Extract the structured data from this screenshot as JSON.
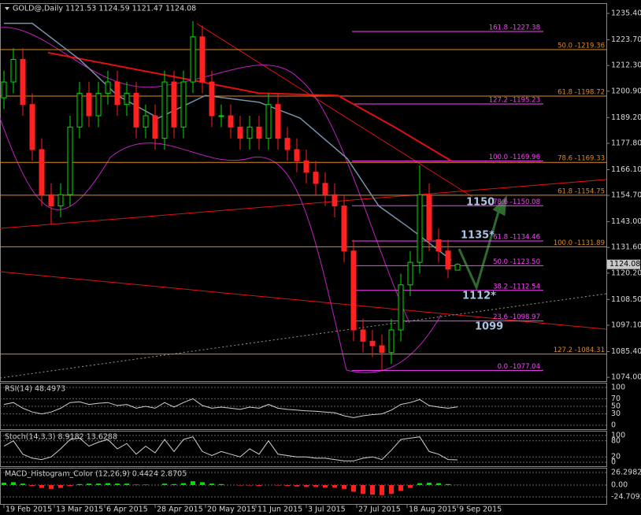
{
  "chart_data": {
    "type": "candlestick",
    "title": "GOLD@,Daily  1121.53 1124.59 1121.47 1124.08",
    "x": [
      0,
      3,
      6,
      9,
      12,
      15,
      18,
      21,
      24,
      27,
      30,
      33,
      36,
      39,
      42,
      45,
      48,
      51,
      54,
      57,
      60,
      63,
      66,
      69,
      72,
      75,
      78,
      81,
      84,
      87,
      90,
      93,
      96,
      99,
      102,
      105,
      108,
      111,
      114,
      117,
      120,
      123,
      126,
      129,
      132,
      135,
      138,
      141,
      144
    ],
    "open": [
      1198,
      1205,
      1215,
      1195,
      1175,
      1155,
      1150,
      1155,
      1185,
      1200,
      1190,
      1200,
      1205,
      1195,
      1200,
      1185,
      1190,
      1180,
      1205,
      1185,
      1205,
      1225,
      1205,
      1190,
      1190,
      1185,
      1180,
      1185,
      1180,
      1195,
      1180,
      1175,
      1170,
      1165,
      1160,
      1155,
      1150,
      1130,
      1095,
      1090,
      1088,
      1085,
      1095,
      1115,
      1125,
      1155,
      1135,
      1130,
      1121.53
    ],
    "high": [
      1210,
      1220,
      1220,
      1200,
      1180,
      1160,
      1160,
      1190,
      1205,
      1205,
      1205,
      1210,
      1210,
      1205,
      1205,
      1195,
      1195,
      1210,
      1210,
      1210,
      1232,
      1230,
      1210,
      1195,
      1195,
      1190,
      1190,
      1190,
      1200,
      1200,
      1185,
      1180,
      1175,
      1170,
      1165,
      1160,
      1155,
      1135,
      1100,
      1095,
      1093,
      1100,
      1120,
      1130,
      1168,
      1160,
      1140,
      1135,
      1124.59
    ],
    "low": [
      1193,
      1200,
      1190,
      1170,
      1150,
      1142,
      1145,
      1150,
      1180,
      1185,
      1185,
      1195,
      1190,
      1190,
      1180,
      1180,
      1175,
      1175,
      1180,
      1180,
      1200,
      1200,
      1185,
      1185,
      1180,
      1175,
      1175,
      1175,
      1175,
      1175,
      1170,
      1165,
      1160,
      1155,
      1150,
      1145,
      1125,
      1090,
      1085,
      1083,
      1077,
      1080,
      1090,
      1110,
      1120,
      1130,
      1125,
      1118,
      1121.47
    ],
    "close": [
      1205,
      1215,
      1195,
      1175,
      1155,
      1150,
      1155,
      1185,
      1200,
      1190,
      1200,
      1205,
      1195,
      1200,
      1185,
      1190,
      1180,
      1205,
      1185,
      1205,
      1225,
      1205,
      1190,
      1190,
      1185,
      1180,
      1185,
      1180,
      1195,
      1180,
      1175,
      1170,
      1165,
      1160,
      1155,
      1150,
      1130,
      1095,
      1090,
      1088,
      1085,
      1095,
      1115,
      1125,
      1155,
      1135,
      1130,
      1122,
      1124.08
    ],
    "up_color": "#00e000",
    "down_color": "#ff2020",
    "xlim": [
      -1.25,
      191.25
    ],
    "xticks": [
      {
        "value": 0,
        "label": "19 Feb 2015"
      },
      {
        "value": 16,
        "label": "13 Mar 2015"
      },
      {
        "value": 32,
        "label": "6 Apr 2015"
      },
      {
        "value": 48,
        "label": "28 Apr 2015"
      },
      {
        "value": 64,
        "label": "20 May 2015"
      },
      {
        "value": 80,
        "label": "11 Jun 2015"
      },
      {
        "value": 96,
        "label": "3 Jul 2015"
      },
      {
        "value": 112,
        "label": "27 Jul 2015"
      },
      {
        "value": 128,
        "label": "18 Aug 2015"
      },
      {
        "value": 144,
        "label": "9 Sep 2015"
      }
    ],
    "ylim": [
      1072.3,
      1239.6
    ],
    "yticks": [
      {
        "value": 1235.4,
        "label": "1235.40"
      },
      {
        "value": 1223.7,
        "label": "1223.70"
      },
      {
        "value": 1212.3,
        "label": "1212.30"
      },
      {
        "value": 1200.9,
        "label": "1200.90"
      },
      {
        "value": 1189.2,
        "label": "1189.20"
      },
      {
        "value": 1177.8,
        "label": "1177.80"
      },
      {
        "value": 1166.1,
        "label": "1166.10"
      },
      {
        "value": 1154.7,
        "label": "1154.70"
      },
      {
        "value": 1143.0,
        "label": "1143.00"
      },
      {
        "value": 1131.6,
        "label": "1131.60"
      },
      {
        "value": 1120.2,
        "label": "1120.20"
      },
      {
        "value": 1108.5,
        "label": "1108.50"
      },
      {
        "value": 1097.1,
        "label": "1097.10"
      },
      {
        "value": 1085.4,
        "label": "1085.40"
      },
      {
        "value": 1074.0,
        "label": "1074.00"
      }
    ],
    "last_price": 1124.08,
    "levels": [
      {
        "value": 1219.36,
        "label": "50.0 -1219.36"
      },
      {
        "value": 1198.72,
        "label": "61.8 -1198.72"
      },
      {
        "value": 1169.33,
        "label": "78.6 -1169.33"
      },
      {
        "value": 1154.75,
        "label": "61.8 -1154.75"
      },
      {
        "value": 1131.89,
        "label": "100.0 -1131.89"
      },
      {
        "value": 1084.31,
        "label": "127.2 -1084.31"
      }
    ],
    "level_color": "#e08a1e",
    "fib_levels": [
      {
        "value": 1227.38,
        "label": "161.8 -1227.38"
      },
      {
        "value": 1195.23,
        "label": "127.2 -1195.23"
      },
      {
        "value": 1169.96,
        "label": "100.0 -1169.96"
      },
      {
        "value": 1150.08,
        "label": "78.6 -1150.08"
      },
      {
        "value": 1134.46,
        "label": "61.8 -1134.46"
      },
      {
        "value": 1123.5,
        "label": "50.0 -1123.50"
      },
      {
        "value": 1112.54,
        "label": "38.2 -1112.54"
      },
      {
        "value": 1098.97,
        "label": "23.6 -1098.97"
      },
      {
        "value": 1077.04,
        "label": "0.0 -1077.04"
      }
    ],
    "fib_color": "#ff40ff",
    "annotations": [
      "1150",
      "1135*",
      "1112*",
      "1099"
    ],
    "lines": [
      {
        "color": "#e01010",
        "x": [
          14,
          59,
          81,
          106,
          124,
          142
        ],
        "values": [
          1218,
          1206,
          1200,
          1199,
          1185,
          1170
        ]
      },
      {
        "color": "#7890a8",
        "x": [
          0,
          9,
          24,
          36,
          49,
          64,
          81,
          94,
          109,
          119,
          129,
          142
        ],
        "values": [
          1231,
          1231,
          1215,
          1199,
          1189,
          1199,
          1196,
          1189,
          1171,
          1150,
          1140,
          1126
        ]
      }
    ],
    "panels": [
      {
        "type": "line",
        "label": "RSI(14) 48.4973",
        "color": "#d0d0d0",
        "ylim": [
          -10.4,
          110.4
        ],
        "yticks": [
          100,
          70,
          50,
          30,
          0
        ],
        "values": [
          55,
          60,
          45,
          35,
          30,
          35,
          45,
          60,
          62,
          55,
          58,
          60,
          52,
          55,
          45,
          50,
          45,
          60,
          48,
          60,
          70,
          52,
          45,
          48,
          45,
          42,
          48,
          45,
          55,
          45,
          42,
          40,
          38,
          37,
          35,
          33,
          25,
          20,
          25,
          28,
          30,
          40,
          55,
          60,
          68,
          52,
          48,
          45,
          48.4973
        ]
      },
      {
        "type": "line",
        "label": "Stoch(14,3,3) 8.9182 13.6288",
        "color": "#d0d0d0",
        "ylim": [
          -14.7,
          114.7
        ],
        "yticks": [
          100,
          80,
          20,
          0
        ],
        "values": [
          60,
          80,
          30,
          15,
          10,
          20,
          50,
          85,
          90,
          60,
          75,
          85,
          50,
          70,
          30,
          60,
          35,
          85,
          40,
          85,
          95,
          40,
          25,
          40,
          30,
          20,
          50,
          30,
          80,
          30,
          25,
          20,
          20,
          15,
          15,
          10,
          5,
          5,
          15,
          20,
          10,
          45,
          85,
          90,
          95,
          40,
          30,
          10,
          8.9182
        ]
      },
      {
        "type": "bar",
        "label": "MACD_Histogram_Color (12,26,9) 0.4424 2.8705",
        "ylim": [
          -39.52,
          34.52
        ],
        "yticks": [
          26.2982,
          {
            "value": 0,
            "label": "0.00"
          },
          -24.7093
        ],
        "values": [
          5,
          6,
          3,
          -2,
          -6,
          -8,
          -6,
          -2,
          2,
          3,
          3,
          4,
          3,
          3,
          1,
          1,
          0,
          3,
          2,
          4,
          8,
          6,
          3,
          2,
          0,
          -1,
          -1,
          -2,
          0,
          -1,
          -2,
          -3,
          -4,
          -4,
          -5,
          -5,
          -8,
          -14,
          -18,
          -20,
          -21,
          -18,
          -12,
          -6,
          4,
          5,
          4,
          2,
          0.4424
        ]
      }
    ]
  }
}
